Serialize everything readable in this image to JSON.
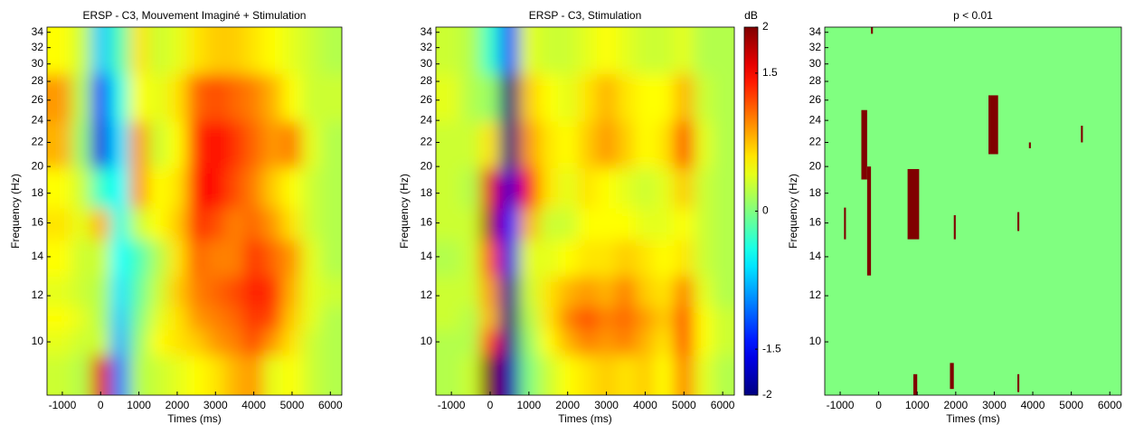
{
  "chart_data": [
    {
      "type": "heatmap",
      "title": "ERSP - C3, Mouvement Imaginé + Stimulation",
      "x_label": "Times (ms)",
      "y_label": "Frequency (Hz)",
      "xlim": [
        -1400,
        6300
      ],
      "ylim": [
        8.1,
        34.7
      ],
      "log_y": true,
      "xticks": [
        -1000,
        0,
        1000,
        2000,
        3000,
        4000,
        5000,
        6000
      ],
      "yticks": [
        10,
        12,
        14,
        16,
        18,
        20,
        22,
        24,
        26,
        28,
        30,
        32,
        34
      ],
      "clim": [
        -2,
        2
      ],
      "times": [
        -1000,
        -500,
        0,
        500,
        1000,
        1500,
        2000,
        2500,
        3000,
        3500,
        4000,
        4500,
        5000,
        5500,
        6000
      ],
      "frequencies": [
        9,
        10,
        11,
        12,
        14,
        16,
        18,
        22,
        26,
        32
      ],
      "values": [
        [
          0.3,
          0.2,
          1.6,
          -1.0,
          0.2,
          0.3,
          0.4,
          0.5,
          0.6,
          0.8,
          0.9,
          0.4,
          0.5,
          0.3,
          0.2
        ],
        [
          0.4,
          0.3,
          0.3,
          -0.8,
          0.1,
          0.5,
          0.6,
          0.7,
          0.9,
          1.0,
          1.2,
          0.9,
          0.6,
          0.3,
          0.2
        ],
        [
          0.5,
          0.4,
          0.2,
          -0.7,
          0.0,
          0.4,
          0.6,
          0.9,
          1.0,
          1.1,
          1.3,
          1.2,
          0.7,
          0.4,
          0.2
        ],
        [
          0.4,
          0.3,
          0.2,
          -0.6,
          -0.1,
          0.3,
          0.7,
          1.0,
          1.1,
          1.2,
          1.4,
          1.3,
          0.8,
          0.4,
          0.3
        ],
        [
          0.5,
          0.3,
          0.3,
          -0.5,
          -0.2,
          0.2,
          0.6,
          1.1,
          1.0,
          1.0,
          1.3,
          1.1,
          0.9,
          0.4,
          0.2
        ],
        [
          0.6,
          0.4,
          0.8,
          -0.4,
          0.3,
          0.5,
          0.7,
          1.3,
          1.2,
          1.0,
          1.1,
          0.9,
          0.6,
          0.3,
          0.2
        ],
        [
          0.5,
          0.3,
          -0.3,
          -0.5,
          0.9,
          0.5,
          0.6,
          1.4,
          1.5,
          1.2,
          1.0,
          0.7,
          0.5,
          0.3,
          0.2
        ],
        [
          0.8,
          0.1,
          -1.6,
          -0.6,
          0.9,
          0.3,
          0.5,
          1.3,
          1.5,
          1.3,
          1.1,
          0.9,
          1.0,
          0.4,
          0.2
        ],
        [
          0.9,
          0.2,
          -1.3,
          -0.4,
          0.5,
          0.4,
          0.6,
          1.1,
          1.2,
          1.1,
          1.0,
          0.8,
          0.5,
          0.3,
          0.3
        ],
        [
          0.5,
          0.3,
          -0.7,
          -0.2,
          0.6,
          0.3,
          0.4,
          0.6,
          0.7,
          0.7,
          0.6,
          0.5,
          0.4,
          0.3,
          0.2
        ]
      ]
    },
    {
      "type": "heatmap",
      "title": "ERSP - C3, Stimulation",
      "x_label": "Times (ms)",
      "y_label": "Frequency (Hz)",
      "xlim": [
        -1400,
        6300
      ],
      "ylim": [
        8.1,
        34.7
      ],
      "log_y": true,
      "xticks": [
        -1000,
        0,
        1000,
        2000,
        3000,
        4000,
        5000,
        6000
      ],
      "yticks": [
        10,
        12,
        14,
        16,
        18,
        20,
        22,
        24,
        26,
        28,
        30,
        32,
        34
      ],
      "clim": [
        -2,
        2
      ],
      "colorbar": true,
      "colorbar_label": "dB",
      "cticks": [
        -2,
        -1.5,
        0,
        1.5,
        2
      ],
      "times": [
        -1000,
        -500,
        0,
        500,
        1000,
        1500,
        2000,
        2500,
        3000,
        3500,
        4000,
        4500,
        5000,
        5500,
        6000
      ],
      "frequencies": [
        9,
        10,
        11,
        12,
        14,
        16,
        18,
        22,
        26,
        32
      ],
      "values": [
        [
          0.2,
          0.3,
          2.0,
          -1.8,
          0.0,
          0.3,
          0.5,
          0.6,
          0.7,
          0.6,
          0.7,
          0.5,
          1.0,
          0.4,
          0.2
        ],
        [
          0.2,
          0.2,
          1.3,
          -1.9,
          0.1,
          0.5,
          0.8,
          1.0,
          0.9,
          1.0,
          0.8,
          0.6,
          1.2,
          0.5,
          0.3
        ],
        [
          0.3,
          0.2,
          0.8,
          -2.0,
          0.2,
          0.6,
          1.0,
          1.2,
          1.0,
          1.1,
          0.9,
          0.7,
          1.2,
          0.5,
          0.3
        ],
        [
          0.3,
          0.3,
          0.9,
          -1.9,
          0.3,
          0.6,
          0.8,
          0.9,
          0.8,
          1.0,
          0.7,
          0.6,
          1.0,
          0.4,
          0.2
        ],
        [
          0.2,
          0.3,
          1.2,
          -1.6,
          0.4,
          0.4,
          0.5,
          0.6,
          0.6,
          0.7,
          0.6,
          0.5,
          0.6,
          0.3,
          0.2
        ],
        [
          0.3,
          0.3,
          1.8,
          -1.5,
          0.8,
          0.3,
          0.3,
          0.5,
          0.5,
          0.5,
          0.4,
          0.4,
          0.5,
          0.3,
          0.2
        ],
        [
          0.3,
          0.2,
          1.6,
          -1.7,
          1.5,
          0.6,
          0.4,
          0.6,
          0.5,
          0.4,
          0.3,
          0.4,
          0.7,
          0.3,
          0.2
        ],
        [
          0.3,
          0.3,
          0.6,
          -2.0,
          0.9,
          0.6,
          0.5,
          0.7,
          0.9,
          0.7,
          0.5,
          0.6,
          1.2,
          0.4,
          0.2
        ],
        [
          0.4,
          0.2,
          0.1,
          -2.0,
          0.7,
          0.5,
          0.4,
          0.6,
          0.8,
          0.6,
          0.5,
          0.5,
          0.8,
          0.3,
          0.2
        ],
        [
          0.3,
          0.2,
          -0.3,
          -1.2,
          0.4,
          0.3,
          0.3,
          0.4,
          0.5,
          0.4,
          0.3,
          0.3,
          0.4,
          0.2,
          0.2
        ]
      ]
    },
    {
      "type": "mask",
      "title": "p < 0.01",
      "x_label": "Times (ms)",
      "y_label": "Frequency (Hz)",
      "xlim": [
        -1400,
        6300
      ],
      "ylim": [
        8.1,
        34.7
      ],
      "log_y": true,
      "xticks": [
        -1000,
        0,
        1000,
        2000,
        3000,
        4000,
        5000,
        6000
      ],
      "yticks": [
        10,
        12,
        14,
        16,
        18,
        20,
        22,
        24,
        26,
        28,
        30,
        32,
        34
      ],
      "background_color": "#80ff80",
      "color": "#800000",
      "regions": [
        [
          -900,
          -850,
          15,
          17
        ],
        [
          -450,
          -300,
          19,
          25
        ],
        [
          -300,
          -200,
          13,
          20
        ],
        [
          -200,
          -150,
          33.8,
          34.7
        ],
        [
          750,
          1050,
          15,
          19.8
        ],
        [
          2850,
          3100,
          21,
          26.5
        ],
        [
          1850,
          1950,
          8.3,
          9.2
        ],
        [
          900,
          1000,
          8.1,
          8.8
        ],
        [
          3600,
          3650,
          15.5,
          16.7
        ],
        [
          5250,
          5300,
          22,
          23.5
        ],
        [
          1950,
          2000,
          15,
          16.5
        ],
        [
          3900,
          3950,
          21.5,
          22
        ],
        [
          3600,
          3650,
          8.2,
          8.8
        ]
      ]
    }
  ]
}
